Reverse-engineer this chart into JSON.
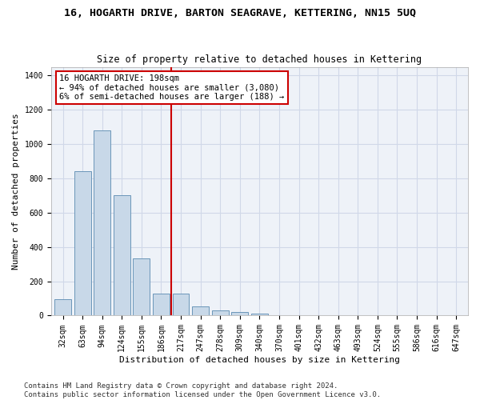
{
  "title": "16, HOGARTH DRIVE, BARTON SEAGRAVE, KETTERING, NN15 5UQ",
  "subtitle": "Size of property relative to detached houses in Kettering",
  "xlabel": "Distribution of detached houses by size in Kettering",
  "ylabel": "Number of detached properties",
  "bar_color": "#c8d8e8",
  "bar_edge_color": "#5a8ab0",
  "categories": [
    "32sqm",
    "63sqm",
    "94sqm",
    "124sqm",
    "155sqm",
    "186sqm",
    "217sqm",
    "247sqm",
    "278sqm",
    "309sqm",
    "340sqm",
    "370sqm",
    "401sqm",
    "432sqm",
    "463sqm",
    "493sqm",
    "524sqm",
    "555sqm",
    "586sqm",
    "616sqm",
    "647sqm"
  ],
  "values": [
    95,
    840,
    1080,
    700,
    335,
    130,
    130,
    55,
    28,
    20,
    12,
    0,
    0,
    0,
    0,
    0,
    0,
    0,
    0,
    0,
    0
  ],
  "vline_x": 5.5,
  "vline_color": "#cc0000",
  "annotation_text": "16 HOGARTH DRIVE: 198sqm\n← 94% of detached houses are smaller (3,080)\n6% of semi-detached houses are larger (188) →",
  "annotation_box_color": "#ffffff",
  "annotation_box_edge": "#cc0000",
  "ylim": [
    0,
    1450
  ],
  "yticks": [
    0,
    200,
    400,
    600,
    800,
    1000,
    1200,
    1400
  ],
  "grid_color": "#d0d8e8",
  "background_color": "#eef2f8",
  "footer": "Contains HM Land Registry data © Crown copyright and database right 2024.\nContains public sector information licensed under the Open Government Licence v3.0.",
  "title_fontsize": 9.5,
  "subtitle_fontsize": 8.5,
  "xlabel_fontsize": 8,
  "ylabel_fontsize": 8,
  "tick_fontsize": 7,
  "annotation_fontsize": 7.5,
  "footer_fontsize": 6.5
}
